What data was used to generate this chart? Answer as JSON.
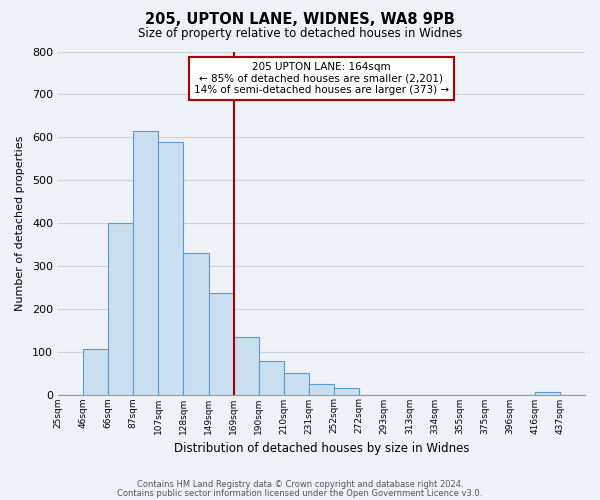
{
  "title": "205, UPTON LANE, WIDNES, WA8 9PB",
  "subtitle": "Size of property relative to detached houses in Widnes",
  "xlabel": "Distribution of detached houses by size in Widnes",
  "ylabel": "Number of detached properties",
  "bin_labels": [
    "25sqm",
    "46sqm",
    "66sqm",
    "87sqm",
    "107sqm",
    "128sqm",
    "149sqm",
    "169sqm",
    "190sqm",
    "210sqm",
    "231sqm",
    "252sqm",
    "272sqm",
    "293sqm",
    "313sqm",
    "334sqm",
    "355sqm",
    "375sqm",
    "396sqm",
    "416sqm",
    "437sqm"
  ],
  "bar_heights": [
    0,
    105,
    400,
    615,
    590,
    330,
    237,
    135,
    77,
    50,
    25,
    15,
    0,
    0,
    0,
    0,
    0,
    0,
    0,
    7,
    0
  ],
  "bar_color": "#c9dff0",
  "bar_edge_color": "#5b9bd5",
  "vline_x_index": 7,
  "vline_color": "#aa0000",
  "annotation_line1": "205 UPTON LANE: 164sqm",
  "annotation_line2": "← 85% of detached houses are smaller (2,201)",
  "annotation_line3": "14% of semi-detached houses are larger (373) →",
  "annotation_box_color": "#ffffff",
  "annotation_box_edge_color": "#aa0000",
  "ylim": [
    0,
    800
  ],
  "yticks": [
    0,
    100,
    200,
    300,
    400,
    500,
    600,
    700,
    800
  ],
  "footer1": "Contains HM Land Registry data © Crown copyright and database right 2024.",
  "footer2": "Contains public sector information licensed under the Open Government Licence v3.0.",
  "background_color": "#eef2f7",
  "plot_background_color": "#eef2f7",
  "grid_color": "#c8d4e0"
}
